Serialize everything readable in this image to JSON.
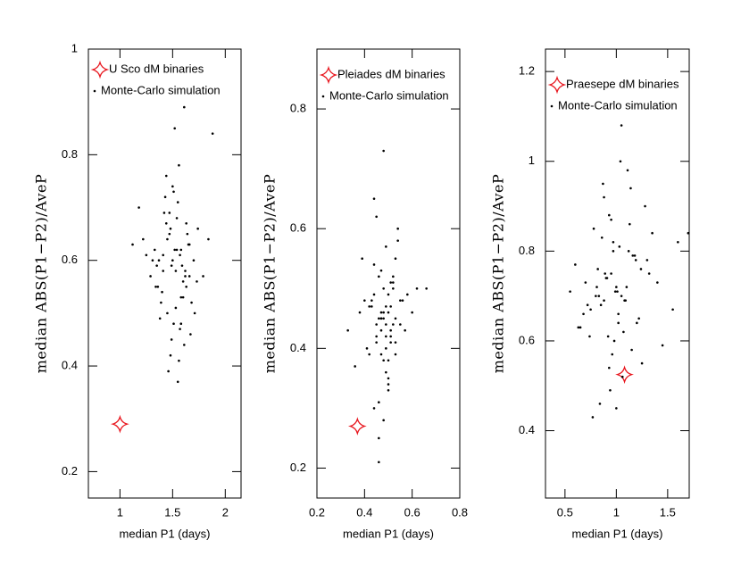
{
  "chart_data": [
    {
      "type": "scatter",
      "xlabel": "median P1 (days)",
      "ylabel": "median ABS(P1−P2)/AveP",
      "xlim": [
        0.7,
        2.15
      ],
      "ylim": [
        0.15,
        1.0
      ],
      "xticks": [
        1,
        1.5,
        2
      ],
      "yticks": [
        0.2,
        0.4,
        0.6,
        0.8,
        1
      ],
      "series": [
        {
          "name": "U Sco dM binaries",
          "color": "#e8141c",
          "marker": "star",
          "x": [
            1.0
          ],
          "values": [
            0.29
          ]
        },
        {
          "name": "Monte-Carlo simulation",
          "color": "#000000",
          "marker": "dot",
          "x": [
            1.52,
            1.41,
            1.63,
            1.55,
            1.38,
            1.47,
            1.7,
            1.58,
            1.44,
            1.61,
            1.35,
            1.5,
            1.66,
            1.53,
            1.29,
            1.74,
            1.48,
            1.57,
            1.42,
            1.6,
            1.51,
            1.45,
            1.68,
            1.37,
            1.56,
            1.62,
            1.33,
            1.49,
            1.79,
            1.54,
            1.4,
            1.65,
            1.46,
            1.59,
            1.25,
            1.52,
            1.71,
            1.43,
            1.57,
            1.64,
            1.36,
            1.5,
            1.18,
            1.55,
            1.48,
            1.62,
            1.39,
            1.58,
            1.84,
            1.44,
            1.53,
            1.67,
            1.31,
            1.6,
            1.47,
            1.12,
            1.56,
            1.73,
            1.41,
            1.51,
            1.63,
            1.88,
            1.34,
            1.58,
            1.49,
            1.22,
            1.61,
            1.54,
            1.45,
            1.66
          ],
          "values": [
            0.62,
            0.58,
            0.55,
            0.71,
            0.49,
            0.65,
            0.6,
            0.53,
            0.67,
            0.44,
            0.59,
            0.74,
            0.63,
            0.51,
            0.57,
            0.66,
            0.42,
            0.61,
            0.69,
            0.56,
            0.48,
            0.64,
            0.52,
            0.6,
            0.78,
            0.58,
            0.62,
            0.45,
            0.57,
            0.68,
            0.54,
            0.63,
            0.39,
            0.59,
            0.61,
            0.85,
            0.5,
            0.72,
            0.47,
            0.65,
            0.55,
            0.6,
            0.7,
            0.37,
            0.66,
            0.57,
            0.52,
            0.62,
            0.64,
            0.76,
            0.58,
            0.46,
            0.6,
            0.53,
            0.69,
            0.63,
            0.41,
            0.56,
            0.61,
            0.73,
            0.67,
            0.84,
            0.55,
            0.48,
            0.59,
            0.64,
            0.89,
            0.62,
            0.5,
            0.57
          ]
        }
      ]
    },
    {
      "type": "scatter",
      "xlabel": "median P1 (days)",
      "ylabel": "median ABS(P1−P2)/AveP",
      "xlim": [
        0.2,
        0.8
      ],
      "ylim": [
        0.15,
        0.9
      ],
      "xticks": [
        0.2,
        0.4,
        0.6,
        0.8
      ],
      "yticks": [
        0.2,
        0.4,
        0.6,
        0.8
      ],
      "series": [
        {
          "name": "Pleiades dM binaries",
          "color": "#e8141c",
          "marker": "star",
          "x": [
            0.37
          ],
          "values": [
            0.27
          ]
        },
        {
          "name": "Monte-Carlo simulation",
          "color": "#000000",
          "marker": "dot",
          "x": [
            0.48,
            0.45,
            0.52,
            0.5,
            0.42,
            0.47,
            0.55,
            0.49,
            0.44,
            0.51,
            0.39,
            0.48,
            0.53,
            0.46,
            0.57,
            0.43,
            0.5,
            0.47,
            0.54,
            0.41,
            0.49,
            0.52,
            0.45,
            0.36,
            0.48,
            0.51,
            0.6,
            0.46,
            0.5,
            0.44,
            0.53,
            0.47,
            0.49,
            0.42,
            0.56,
            0.48,
            0.45,
            0.51,
            0.38,
            0.5,
            0.47,
            0.54,
            0.43,
            0.49,
            0.52,
            0.46,
            0.62,
            0.48,
            0.44,
            0.51,
            0.4,
            0.5,
            0.47,
            0.53,
            0.45,
            0.49,
            0.58,
            0.46,
            0.51,
            0.48,
            0.33,
            0.52,
            0.47,
            0.5,
            0.44,
            0.55,
            0.49,
            0.66,
            0.46,
            0.53
          ],
          "values": [
            0.45,
            0.42,
            0.5,
            0.38,
            0.47,
            0.53,
            0.44,
            0.36,
            0.49,
            0.41,
            0.55,
            0.46,
            0.39,
            0.52,
            0.43,
            0.48,
            0.34,
            0.45,
            0.58,
            0.4,
            0.47,
            0.44,
            0.62,
            0.37,
            0.5,
            0.43,
            0.46,
            0.31,
            0.49,
            0.54,
            0.41,
            0.45,
            0.57,
            0.39,
            0.48,
            0.28,
            0.44,
            0.51,
            0.46,
            0.35,
            0.43,
            0.6,
            0.47,
            0.4,
            0.52,
            0.45,
            0.5,
            0.38,
            0.65,
            0.42,
            0.48,
            0.33,
            0.46,
            0.55,
            0.41,
            0.44,
            0.49,
            0.25,
            0.47,
            0.73,
            0.43,
            0.51,
            0.39,
            0.46,
            0.3,
            0.48,
            0.42,
            0.5,
            0.21,
            0.45
          ]
        }
      ]
    },
    {
      "type": "scatter",
      "xlabel": "median P1 (days)",
      "ylabel": "median ABS(P1−P2)/AveP",
      "xlim": [
        0.31,
        1.71
      ],
      "ylim": [
        0.25,
        1.25
      ],
      "xticks": [
        0.5,
        1,
        1.5
      ],
      "yticks": [
        0.4,
        0.6,
        0.8,
        1,
        1.2
      ],
      "series": [
        {
          "name": "Praesepe dM binaries",
          "color": "#e8141c",
          "marker": "star",
          "x": [
            1.08
          ],
          "values": [
            0.525
          ]
        },
        {
          "name": "Monte-Carlo simulation",
          "color": "#000000",
          "marker": "dot",
          "x": [
            1.0,
            0.85,
            1.12,
            0.95,
            1.2,
            0.78,
            1.05,
            0.92,
            1.3,
            0.88,
            1.02,
            0.7,
            1.15,
            0.97,
            1.08,
            0.82,
            1.25,
            0.93,
            1.01,
            0.65,
            1.18,
            0.9,
            1.06,
            0.75,
            1.35,
            0.98,
            0.87,
            1.1,
            0.6,
            1.22,
            0.94,
            1.03,
            0.8,
            1.4,
            0.96,
            1.13,
            0.72,
            1.07,
            0.89,
            1.28,
            0.99,
            0.84,
            1.16,
            0.68,
            1.04,
            0.91,
            1.45,
            0.86,
            1.09,
            0.77,
            1.24,
            0.95,
            1.02,
            0.55,
            1.19,
            0.93,
            1.11,
            0.81,
            1.55,
            0.97,
            0.74,
            1.05,
            1.32,
            0.88,
            1.0,
            1.7,
            0.83,
            1.14,
            0.63,
            1.6
          ],
          "values": [
            0.72,
            0.68,
            0.8,
            0.75,
            0.64,
            0.85,
            0.7,
            0.61,
            0.78,
            0.92,
            0.66,
            0.73,
            0.58,
            0.82,
            0.69,
            0.76,
            0.55,
            0.88,
            0.71,
            0.63,
            0.79,
            0.74,
            0.52,
            0.67,
            0.84,
            0.6,
            0.95,
            0.72,
            0.77,
            0.65,
            0.49,
            0.81,
            0.7,
            0.73,
            0.57,
            0.86,
            0.68,
            0.62,
            0.75,
            0.9,
            0.71,
            0.46,
            0.79,
            0.66,
            1.0,
            0.74,
            0.59,
            0.83,
            0.69,
            0.43,
            0.76,
            0.87,
            0.64,
            0.71,
            0.78,
            0.54,
            0.98,
            0.72,
            0.67,
            0.8,
            0.61,
            1.08,
            0.75,
            0.69,
            0.45,
            0.84,
            0.7,
            0.94,
            0.63,
            0.82
          ]
        }
      ]
    }
  ]
}
